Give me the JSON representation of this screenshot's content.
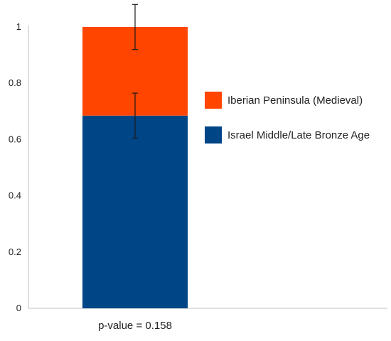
{
  "chart_data": {
    "type": "bar",
    "stacked": true,
    "x_label": "p-value = 0.158",
    "ylim": [
      0,
      1
    ],
    "y_ticks": [
      "0",
      "0.2",
      "0.4",
      "0.6",
      "0.8",
      "1"
    ],
    "y_tick_values": [
      0,
      0.2,
      0.4,
      0.6,
      0.8,
      1
    ],
    "grid": false,
    "legend_position": "right",
    "series": [
      {
        "name": "Israel Middle/Late Bronze Age",
        "color": "#004586",
        "value": 0.685,
        "error_low": 0.605,
        "error_high": 0.765
      },
      {
        "name": "Iberian Peninsula (Medieval)",
        "color": "#ff4500",
        "value": 0.315,
        "error_low": 0.92,
        "error_high": 1.08
      }
    ]
  }
}
